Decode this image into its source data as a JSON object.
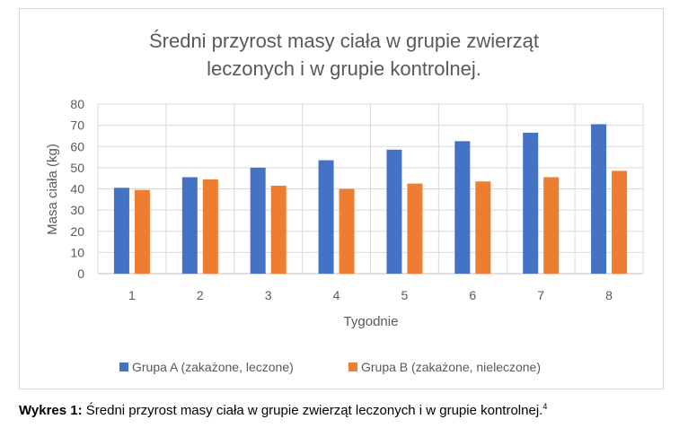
{
  "chart_data": {
    "type": "bar",
    "title_lines": [
      "Średni przyrost masy ciała w grupie zwierząt",
      "leczonych i w grupie kontrolnej."
    ],
    "xlabel": "Tygodnie",
    "ylabel": "Masa ciała (kg)",
    "ylim": [
      0,
      80
    ],
    "yticks": [
      0,
      10,
      20,
      30,
      40,
      50,
      60,
      70,
      80
    ],
    "categories": [
      "1",
      "2",
      "3",
      "4",
      "5",
      "6",
      "7",
      "8"
    ],
    "grid": true,
    "legend_position": "bottom",
    "series": [
      {
        "name": "Grupa A (zakażone, leczone)",
        "color": "#4472C4",
        "values": [
          40.5,
          45.5,
          50,
          53.5,
          58.5,
          62.5,
          66.5,
          70.5
        ]
      },
      {
        "name": "Grupa B (zakażone, nieleczone)",
        "color": "#ED7D31",
        "values": [
          39.5,
          44.5,
          41.5,
          40,
          42.5,
          43.5,
          45.5,
          48.5
        ]
      }
    ]
  },
  "caption": {
    "label": "Wykres 1:",
    "text": " Średni przyrost masy ciała w grupie zwierząt leczonych i w grupie kontrolnej.",
    "footnote": "4"
  }
}
